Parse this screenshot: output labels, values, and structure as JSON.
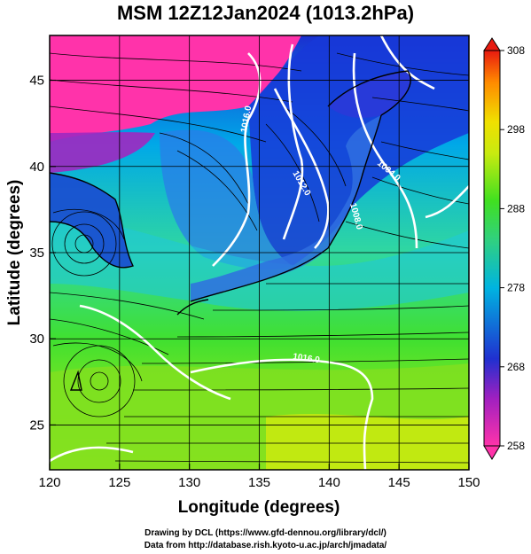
{
  "title": "MSM 12Z12Jan2024 (1013.2hPa)",
  "x_axis": {
    "label": "Longitude (degrees)",
    "ticks": [
      "120",
      "125",
      "130",
      "135",
      "140",
      "145",
      "150"
    ],
    "range": [
      120,
      150
    ]
  },
  "y_axis": {
    "label": "Latitude  (degrees)",
    "ticks": [
      "25",
      "30",
      "35",
      "40",
      "45"
    ],
    "range": [
      22.4,
      47.6
    ]
  },
  "colorbar": {
    "ticks": [
      "258",
      "268",
      "278",
      "288",
      "298",
      "308"
    ],
    "range": [
      258,
      308
    ],
    "colors": [
      "#ff33aa",
      "#a020c0",
      "#2030d0",
      "#00b4e0",
      "#30d080",
      "#40e020",
      "#c8ea10",
      "#f0e000",
      "#ff8a00",
      "#e81a10"
    ]
  },
  "contour_labels": [
    "1016.0",
    "1012.0",
    "1008.0",
    "1004.0",
    "1016.0"
  ],
  "credits": {
    "line1": "Drawing by DCL (https://www.gfd-dennou.org/library/dcl/)",
    "line2": "Data from http://database.rish.kyoto-u.ac.jp/arch/jmadata/"
  }
}
